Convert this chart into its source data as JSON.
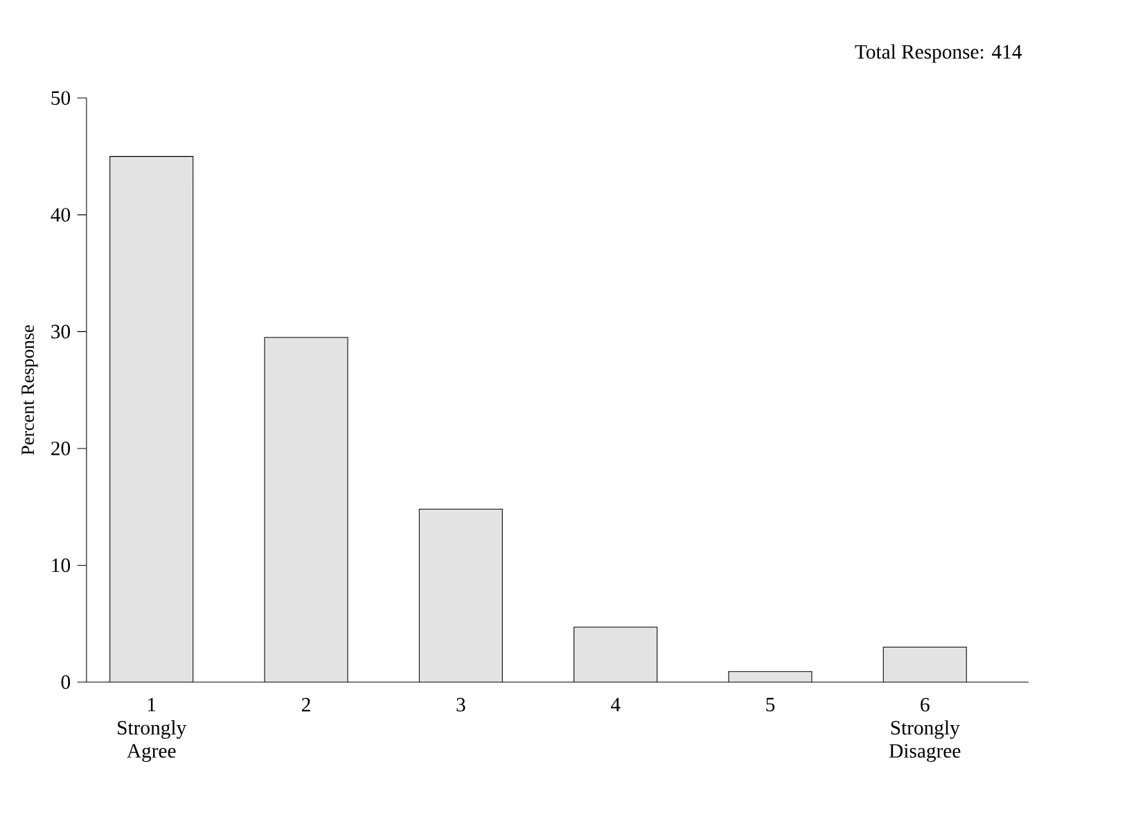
{
  "chart_data": {
    "type": "bar",
    "title": "Total Response: 414",
    "ylabel": "Percent Response",
    "categories": [
      "1 Strongly Agree",
      "2",
      "3",
      "4",
      "5",
      "6 Strongly Disagree"
    ],
    "values": [
      45,
      29.5,
      14.8,
      4.7,
      0.9,
      3.0
    ],
    "color": "#e3e3e3",
    "ylim": [
      0,
      50
    ],
    "yticks": [
      0,
      10,
      20,
      30,
      40,
      50
    ]
  }
}
